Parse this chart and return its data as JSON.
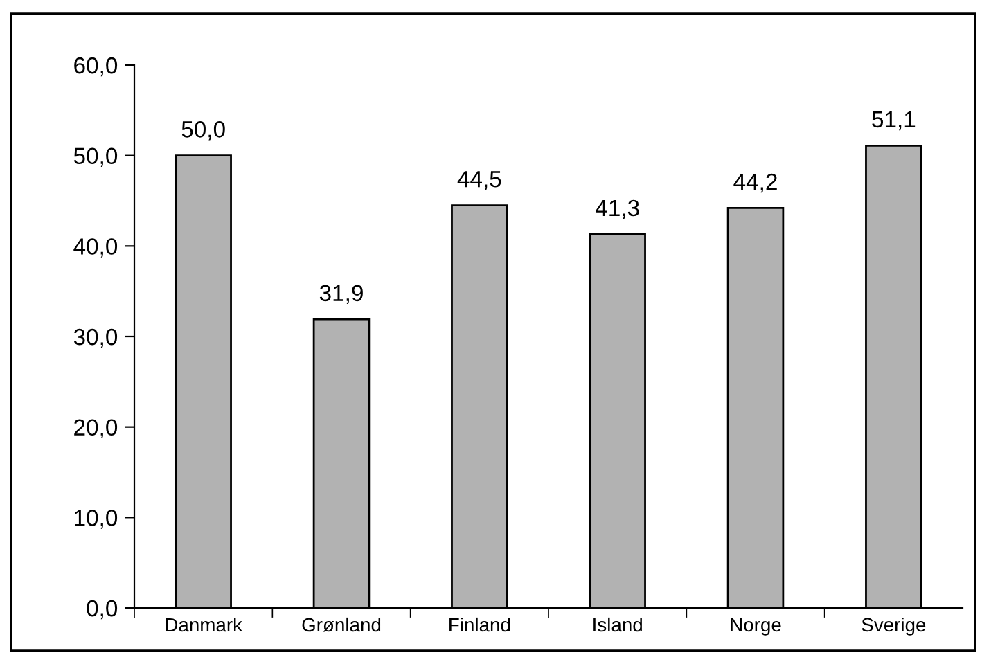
{
  "chart_data": {
    "type": "bar",
    "categories": [
      "Danmark",
      "Grønland",
      "Finland",
      "Island",
      "Norge",
      "Sverige"
    ],
    "values": [
      50.0,
      31.9,
      44.5,
      41.3,
      44.2,
      51.1
    ],
    "value_labels": [
      "50,0",
      "31,9",
      "44,5",
      "41,3",
      "44,2",
      "51,1"
    ],
    "color": "#b2b2b2",
    "ylim": [
      0,
      60
    ],
    "yticks": [
      {
        "value": 0,
        "label": "0,0"
      },
      {
        "value": 10,
        "label": "10,0"
      },
      {
        "value": 20,
        "label": "20,0"
      },
      {
        "value": 30,
        "label": "30,0"
      },
      {
        "value": 40,
        "label": "40,0"
      },
      {
        "value": 50,
        "label": "50,0"
      },
      {
        "value": 60,
        "label": "60,0"
      }
    ],
    "grid": false,
    "legend": false
  }
}
